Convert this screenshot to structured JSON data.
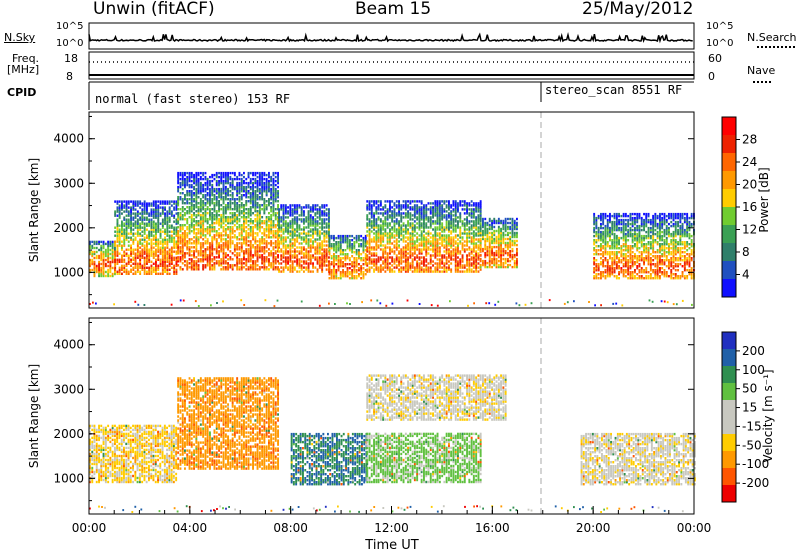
{
  "header": {
    "radar": "Unwin (fitACF)",
    "beam": "Beam 15",
    "date": "25/May/2012"
  },
  "status_panels": {
    "nsky_label": "N.Sky",
    "nsky_ticks": [
      "10^5",
      "10^0"
    ],
    "nsearch_label": "N.Search",
    "nsearch_ticks": [
      "10^5",
      "10^0"
    ],
    "freq_label": "Freq.",
    "freq_unit": "[MHz]",
    "freq_ticks": [
      "18",
      "8"
    ],
    "nave_label": "Nave",
    "nave_ticks": [
      "60",
      "0"
    ],
    "cpid_label": "CPID",
    "cpid_segments": [
      {
        "label": "normal (fast stereo) 153 RF",
        "start_hour": 0
      },
      {
        "label": "stereo_scan 8551 RF",
        "start_hour": 18
      }
    ]
  },
  "chart_data": [
    {
      "type": "heatmap",
      "name": "power",
      "ylabel": "Slant Range [km]",
      "ylim": [
        200,
        4600
      ],
      "yticks": [
        1000,
        2000,
        3000,
        4000
      ],
      "xlim": [
        0,
        24
      ],
      "colorbar": {
        "label": "Power [dB]",
        "ticks": [
          4,
          8,
          12,
          16,
          20,
          24,
          28
        ],
        "range": [
          0,
          32
        ],
        "colors": [
          "#1010ff",
          "#2050c0",
          "#2f7f6a",
          "#3aa054",
          "#70cc30",
          "#ffcc00",
          "#ff9900",
          "#ff6600",
          "#ee2200",
          "#ff0000"
        ]
      },
      "echo_regions": [
        {
          "t": [
            0.0,
            1.0
          ],
          "r": [
            900,
            1700
          ]
        },
        {
          "t": [
            1.0,
            3.5
          ],
          "r": [
            950,
            2600
          ]
        },
        {
          "t": [
            3.5,
            7.5
          ],
          "r": [
            1050,
            3250
          ]
        },
        {
          "t": [
            7.5,
            9.5
          ],
          "r": [
            1000,
            2500
          ]
        },
        {
          "t": [
            9.5,
            11.0
          ],
          "r": [
            850,
            1800
          ]
        },
        {
          "t": [
            11.0,
            15.5
          ],
          "r": [
            1000,
            2600
          ]
        },
        {
          "t": [
            15.5,
            17.0
          ],
          "r": [
            1100,
            2200
          ]
        },
        {
          "t": [
            20.0,
            24.0
          ],
          "r": [
            850,
            2300
          ]
        }
      ]
    },
    {
      "type": "heatmap",
      "name": "velocity",
      "ylabel": "Slant Range [km]",
      "xlabel": "Time UT",
      "ylim": [
        200,
        4600
      ],
      "yticks": [
        1000,
        2000,
        3000,
        4000
      ],
      "xlim": [
        0,
        24
      ],
      "xticks": [
        "00:00",
        "04:00",
        "08:00",
        "12:00",
        "16:00",
        "20:00",
        "00:00"
      ],
      "colorbar": {
        "label": "Velocity [m s⁻¹]",
        "ticks": [
          "200",
          "100",
          "50",
          "15",
          "-15",
          "-50",
          "-100",
          "-200"
        ],
        "colors": [
          "#2030c0",
          "#2060a8",
          "#2f8f50",
          "#60c040",
          "#c8c8c0",
          "#c8c8c0",
          "#ffcc00",
          "#ff9900",
          "#ff5500",
          "#ee0000"
        ]
      },
      "echo_regions": [
        {
          "t": [
            0.0,
            3.5
          ],
          "r": [
            900,
            2200
          ],
          "v": -15
        },
        {
          "t": [
            3.5,
            7.5
          ],
          "r": [
            1200,
            3250
          ],
          "v": -60
        },
        {
          "t": [
            8.0,
            11.0
          ],
          "r": [
            850,
            2000
          ],
          "v": 150
        },
        {
          "t": [
            11.0,
            15.5
          ],
          "r": [
            900,
            2000
          ],
          "v": 40
        },
        {
          "t": [
            11.0,
            16.5
          ],
          "r": [
            2300,
            3300
          ],
          "v": 0
        },
        {
          "t": [
            19.5,
            24.0
          ],
          "r": [
            850,
            2000
          ],
          "v": 0
        }
      ]
    }
  ]
}
